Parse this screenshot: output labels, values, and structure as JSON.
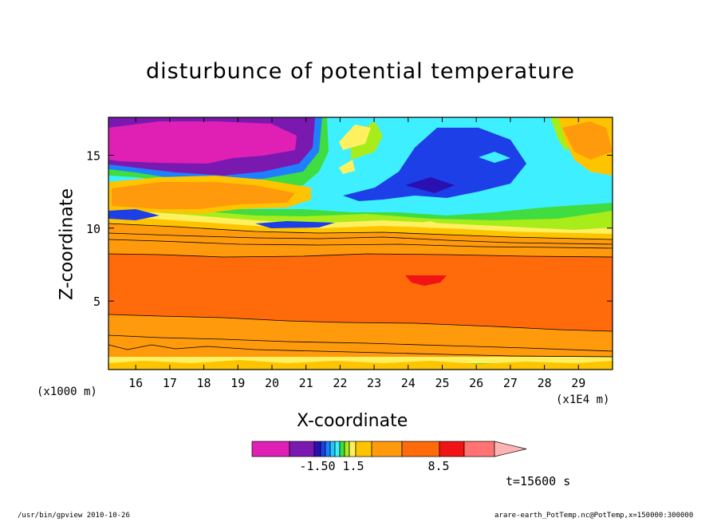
{
  "chart_data": {
    "type": "heatmap",
    "title": "disturbunce of potential temperature",
    "xlabel": "X-coordinate",
    "ylabel": "Z-coordinate",
    "x_unit": "(x1E4 m)",
    "y_unit": "(x1000 m)",
    "xlim": [
      15.2,
      30.0
    ],
    "ylim": [
      0.3,
      17.6
    ],
    "x_ticks": [
      16,
      17,
      18,
      19,
      20,
      21,
      22,
      23,
      24,
      25,
      26,
      27,
      28,
      29
    ],
    "y_ticks": [
      5,
      10,
      15
    ],
    "colorbar": {
      "colors": [
        "#e01fb4",
        "#7a19b0",
        "#2a10b0",
        "#1c3fe8",
        "#1e80ff",
        "#1ec8ff",
        "#3ef0ff",
        "#3fdd3f",
        "#a8ec1a",
        "#fff060",
        "#ffc400",
        "#ff9a0d",
        "#ff6a0a",
        "#f01414",
        "#ff7373",
        "#ffb4b4"
      ],
      "labels": [
        "-1.50",
        "1.5",
        "8.5"
      ],
      "extend": "right"
    },
    "annotation": "t=15600 s",
    "footer_left": "/usr/bin/gpview   2010-10-26",
    "footer_right": "arare-earth_PotTemp.nc@PotTemp,x=150000:300000",
    "bands": [
      {
        "color": "#ff9a0d",
        "z": [
          0.3,
          17.6
        ]
      },
      {
        "color": "#ff6a0a",
        "z": [
          3.0,
          8.0
        ]
      },
      {
        "color": "#f01414",
        "x": [
          23.9,
          25.0
        ],
        "z": [
          6.0,
          6.9
        ]
      },
      {
        "color": "#fff060",
        "z": [
          9.8,
          10.6
        ]
      },
      {
        "color": "#3ef0ff",
        "z": [
          10.0,
          17.6
        ]
      },
      {
        "color": "#1c3fe8",
        "x": [
          23.0,
          26.5
        ],
        "z": [
          12.0,
          16.5
        ]
      },
      {
        "color": "#7a19b0",
        "x": [
          15.2,
          21.0
        ],
        "z": [
          13.5,
          17.6
        ]
      },
      {
        "color": "#e01fb4",
        "x": [
          15.2,
          20.5
        ],
        "z": [
          14.5,
          17.0
        ]
      }
    ]
  }
}
